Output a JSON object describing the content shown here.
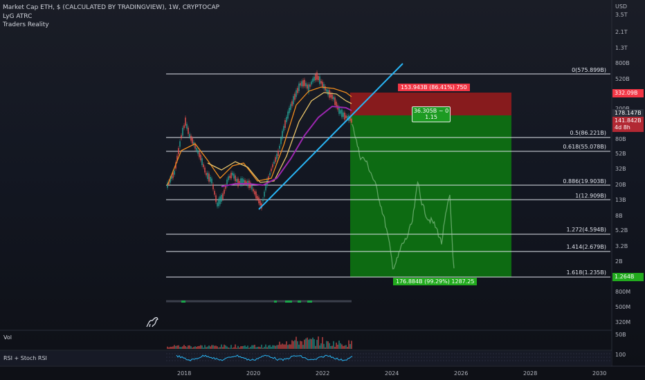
{
  "header": {
    "title": "Market Cap ETH, $ (CALCULATED BY TRADINGVIEW), 1W, CRYPTOCAP",
    "indicators": [
      "LyG ATRC",
      "Traders Reality"
    ]
  },
  "price_axis": {
    "currency": "USD",
    "ticks": [
      "3.5T",
      "2.1T",
      "1.3T",
      "800B",
      "520B",
      "200B",
      "80B",
      "52B",
      "32B",
      "20B",
      "13B",
      "8B",
      "5.2B",
      "3.2B",
      "2B",
      "800M",
      "500M",
      "320M"
    ]
  },
  "time_axis": {
    "ticks": [
      "2018",
      "2020",
      "2022",
      "2024",
      "2026",
      "2028",
      "2030"
    ]
  },
  "price_badges": {
    "stop": "332.09B",
    "last": "178.147B",
    "current": "141.842B",
    "countdown": "4d 8h",
    "target": "1.264B"
  },
  "fib_levels": [
    {
      "label": "0(575.899B)"
    },
    {
      "label": "0.5(86.221B)"
    },
    {
      "label": "0.618(55.078B)"
    },
    {
      "label": "0.886(19.903B)"
    },
    {
      "label": "1(12.909B)"
    },
    {
      "label": "1.272(4.594B)"
    },
    {
      "label": "1.414(2.679B)"
    },
    {
      "label": "1.618(1.235B)"
    }
  ],
  "position": {
    "stop_label": "153.943B (86.41%) 750",
    "entry_label_1": "36.305B ~ 0",
    "entry_label_2": "1.15",
    "target_label": "176.884B (99.29%) 1287.25"
  },
  "panes": {
    "volume": {
      "label": "Vol",
      "axis": "50B"
    },
    "rsi": {
      "label": "RSI + Stoch RSI",
      "axis": "100"
    }
  },
  "colors": {
    "background": "#131722",
    "stop_zone": "#9b1c1c",
    "target_zone": "#0d7a10",
    "badge_red": "#f23645",
    "badge_green": "#22ab1e",
    "trendline": "#29b6f6",
    "ma_orange": "#f08c1e",
    "ma_yellow": "#e9c46a",
    "ma_purple": "#9c27b0"
  }
}
